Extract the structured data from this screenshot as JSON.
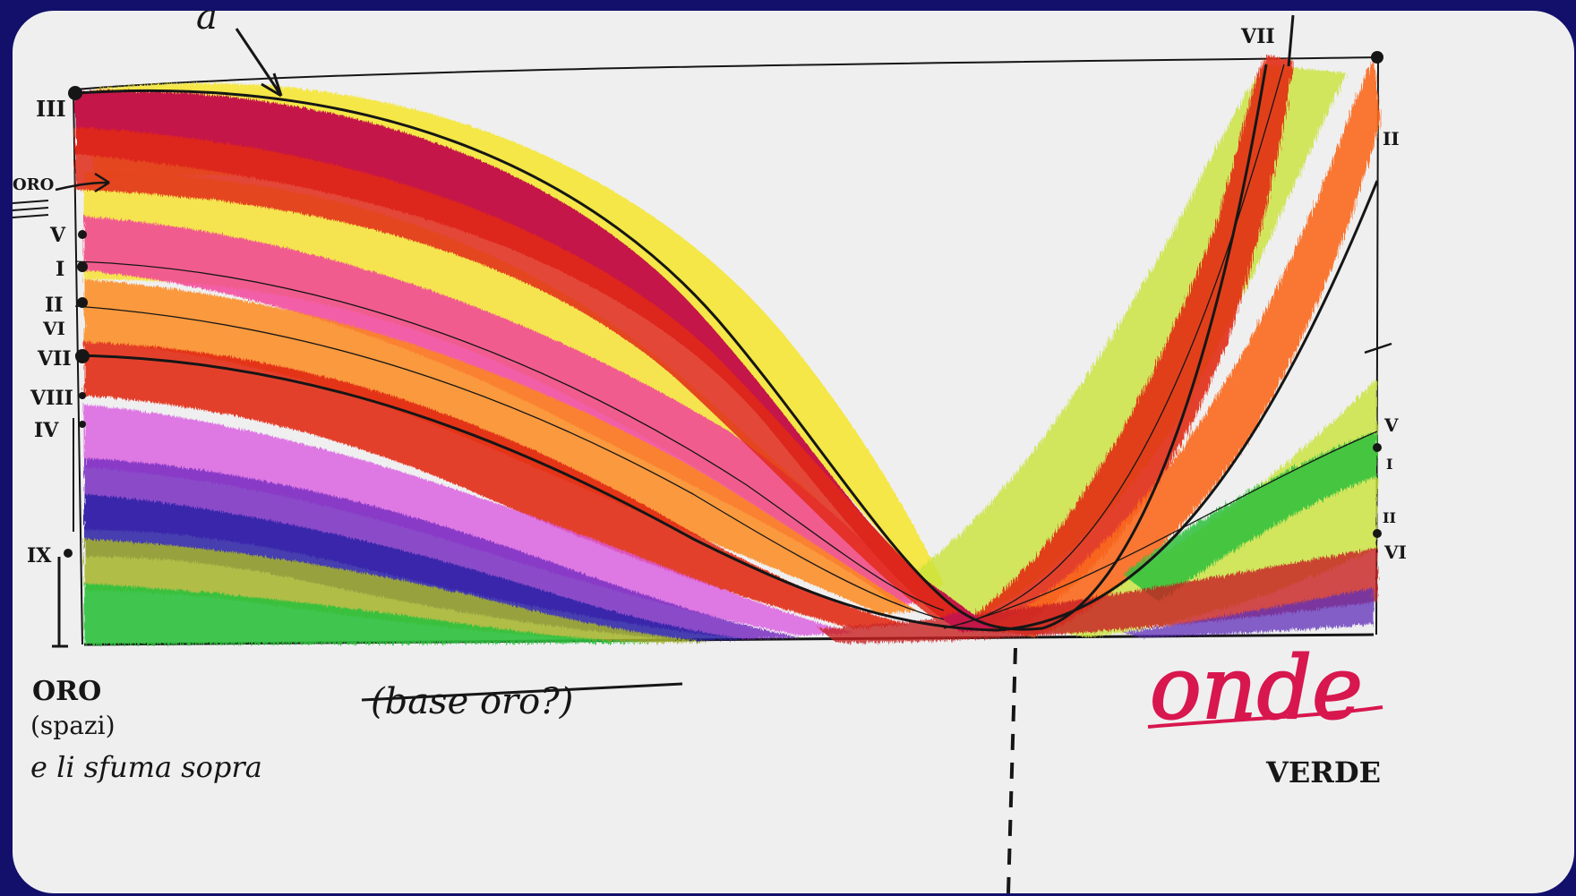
{
  "sketch": {
    "top_letter": "a",
    "left_numerals": [
      "III",
      "ORO",
      "V",
      "I",
      "II",
      "VI",
      "VII",
      "VIII",
      "IV",
      "IX"
    ],
    "right_numerals": [
      "VII",
      "II",
      "V",
      "I",
      "II",
      "VI"
    ],
    "oro_label": "ORO",
    "oro_paren": "(spazi)",
    "oro_note": "e li sfuma sopra",
    "struck_note": "(base oro?)",
    "title": "onde",
    "verde_label": "VERDE",
    "colors": {
      "background": "#12106a",
      "paper": "#efeff0",
      "crimson": "#c4124a",
      "red": "#e22b16",
      "orange": "#fb6a1c",
      "yellow": "#f5e62a",
      "pink": "#f2449c",
      "violet": "#7a2fc2",
      "blue": "#2c1ea6",
      "green": "#2fc13d",
      "lime": "#c9e23a",
      "ink": "#161616"
    }
  }
}
